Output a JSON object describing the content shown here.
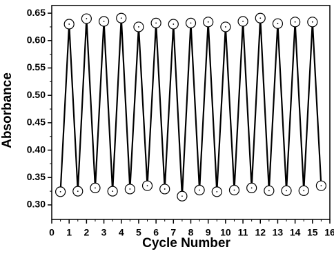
{
  "chart_data": {
    "type": "line",
    "x_label": "Cycle Number",
    "y_label": "Absorbance",
    "x": [
      0.5,
      1,
      1.5,
      2,
      2.5,
      3,
      3.5,
      4,
      4.5,
      5,
      5.5,
      6,
      6.5,
      7,
      7.5,
      8,
      8.5,
      9,
      9.5,
      10,
      10.5,
      11,
      11.5,
      12,
      12.5,
      13,
      13.5,
      14,
      14.5,
      15,
      15.5
    ],
    "series": [
      {
        "color": "#000000",
        "marker": "circle",
        "values": [
          0.324,
          0.63,
          0.325,
          0.64,
          0.331,
          0.635,
          0.325,
          0.641,
          0.329,
          0.625,
          0.335,
          0.632,
          0.329,
          0.63,
          0.316,
          0.632,
          0.327,
          0.634,
          0.324,
          0.625,
          0.327,
          0.635,
          0.331,
          0.641,
          0.326,
          0.631,
          0.326,
          0.634,
          0.326,
          0.634,
          0.335
        ]
      }
    ],
    "xlim": [
      0,
      16
    ],
    "ylim": [
      0.2735,
      0.664
    ],
    "xticks": [
      0,
      1,
      2,
      3,
      4,
      5,
      6,
      7,
      8,
      9,
      10,
      11,
      12,
      13,
      14,
      15,
      16
    ],
    "yticks": [
      {
        "value": 0.3,
        "label": "0.30"
      },
      0.35,
      {
        "value": 0.4,
        "label": "0.40"
      },
      0.45,
      {
        "value": 0.5,
        "label": "0.50"
      },
      0.55,
      {
        "value": 0.6,
        "label": "0.60"
      },
      0.65
    ],
    "grid": false
  }
}
